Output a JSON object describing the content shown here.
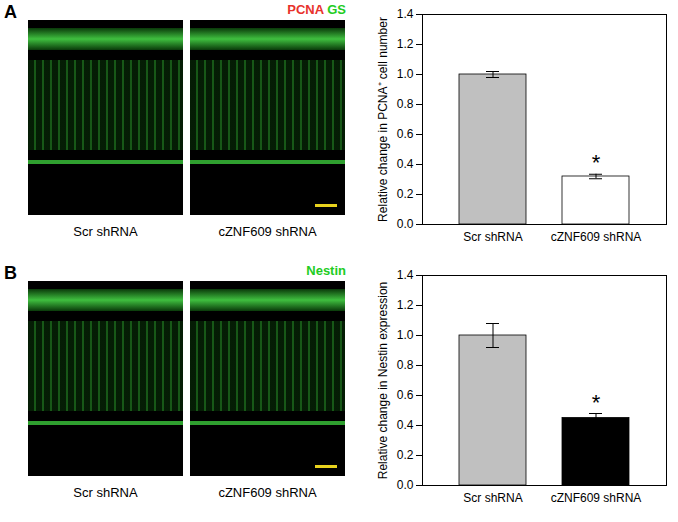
{
  "chart_data": [
    {
      "type": "bar",
      "categories": [
        "Scr shRNA",
        "cZNF609 shRNA"
      ],
      "values": [
        1.0,
        0.32
      ],
      "errors": [
        0.02,
        0.015
      ],
      "colors": [
        "#c0c0c0",
        "#ffffff"
      ],
      "ylabel": "Relative change in PCNA⁺ cell number",
      "ylim": [
        0,
        1.4
      ],
      "yticks": [
        {
          "value": 0,
          "label": "0.0"
        },
        {
          "value": 0.2,
          "label": "0.2"
        },
        {
          "value": 0.4,
          "label": "0.4"
        },
        {
          "value": 0.6,
          "label": "0.6"
        },
        {
          "value": 0.8,
          "label": "0.8"
        },
        {
          "value": 1.0,
          "label": "1.0"
        },
        {
          "value": 1.2,
          "label": "1.2"
        },
        {
          "value": 1.4,
          "label": "1.4"
        }
      ],
      "annotations": [
        {
          "category": "cZNF609 shRNA",
          "text": "*"
        }
      ]
    },
    {
      "type": "bar",
      "categories": [
        "Scr shRNA",
        "cZNF609 shRNA"
      ],
      "values": [
        1.0,
        0.45
      ],
      "errors": [
        0.08,
        0.03
      ],
      "colors": [
        "#c0c0c0",
        "#000000"
      ],
      "ylabel": "Relative change in Nestin expression",
      "ylim": [
        0,
        1.4
      ],
      "yticks": [
        {
          "value": 0,
          "label": "0.0"
        },
        {
          "value": 0.2,
          "label": "0.2"
        },
        {
          "value": 0.4,
          "label": "0.4"
        },
        {
          "value": 0.6,
          "label": "0.6"
        },
        {
          "value": 0.8,
          "label": "0.8"
        },
        {
          "value": 1.0,
          "label": "1.0"
        },
        {
          "value": 1.2,
          "label": "1.2"
        },
        {
          "value": 1.4,
          "label": "1.4"
        }
      ],
      "annotations": [
        {
          "category": "cZNF609 shRNA",
          "text": "*"
        }
      ]
    }
  ],
  "figure": {
    "panels": [
      {
        "label": "A",
        "stains": [
          {
            "text": "PCNA",
            "color": "#e8322c"
          },
          {
            "text": "GS",
            "color": "#22cc22"
          }
        ],
        "images": [
          "Scr shRNA",
          "cZNF609 shRNA"
        ]
      },
      {
        "label": "B",
        "stains": [
          {
            "text": "Nestin",
            "color": "#22cc22"
          }
        ],
        "images": [
          "Scr shRNA",
          "cZNF609 shRNA"
        ]
      }
    ]
  }
}
